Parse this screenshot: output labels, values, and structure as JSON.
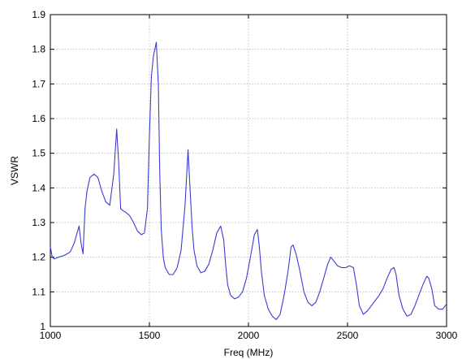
{
  "chart_data": {
    "type": "line",
    "title": "",
    "xlabel": "Freq (MHz)",
    "ylabel": "VSWR",
    "xlim": [
      1000,
      3000
    ],
    "ylim": [
      1.0,
      1.9
    ],
    "x_ticks": [
      1000,
      1500,
      2000,
      2500,
      3000
    ],
    "x_tick_labels": [
      "1000",
      "1500",
      "2000",
      "2500",
      "3000"
    ],
    "y_ticks": [
      1.0,
      1.1,
      1.2,
      1.3,
      1.4,
      1.5,
      1.6,
      1.7,
      1.8,
      1.9
    ],
    "y_tick_labels": [
      "1",
      "1.1",
      "1.2",
      "1.3",
      "1.4",
      "1.5",
      "1.6",
      "1.7",
      "1.8",
      "1.9"
    ],
    "grid": true,
    "line_color": "#3b3bd6",
    "series": [
      {
        "x": [
          1000,
          1010,
          1020,
          1040,
          1070,
          1100,
          1120,
          1130,
          1145,
          1155,
          1165,
          1175,
          1185,
          1200,
          1220,
          1240,
          1260,
          1280,
          1300,
          1320,
          1335,
          1345,
          1355,
          1365,
          1380,
          1400,
          1420,
          1440,
          1460,
          1475,
          1490,
          1500,
          1510,
          1520,
          1535,
          1545,
          1552,
          1560,
          1570,
          1580,
          1600,
          1620,
          1640,
          1660,
          1680,
          1695,
          1705,
          1715,
          1725,
          1740,
          1760,
          1780,
          1800,
          1820,
          1840,
          1860,
          1875,
          1885,
          1895,
          1910,
          1930,
          1950,
          1970,
          1990,
          2010,
          2030,
          2045,
          2055,
          2065,
          2080,
          2100,
          2120,
          2140,
          2160,
          2180,
          2200,
          2215,
          2225,
          2240,
          2260,
          2280,
          2300,
          2320,
          2340,
          2360,
          2380,
          2400,
          2415,
          2430,
          2450,
          2470,
          2490,
          2510,
          2530,
          2545,
          2560,
          2580,
          2600,
          2620,
          2640,
          2660,
          2680,
          2700,
          2720,
          2735,
          2745,
          2760,
          2780,
          2800,
          2820,
          2840,
          2860,
          2880,
          2900,
          2910,
          2925,
          2940,
          2960,
          2980,
          3000
        ],
        "y": [
          1.23,
          1.2,
          1.195,
          1.2,
          1.205,
          1.215,
          1.24,
          1.26,
          1.29,
          1.24,
          1.21,
          1.34,
          1.39,
          1.43,
          1.44,
          1.43,
          1.39,
          1.36,
          1.35,
          1.44,
          1.57,
          1.47,
          1.34,
          1.335,
          1.33,
          1.32,
          1.3,
          1.275,
          1.265,
          1.27,
          1.34,
          1.55,
          1.72,
          1.78,
          1.82,
          1.7,
          1.45,
          1.28,
          1.2,
          1.17,
          1.15,
          1.15,
          1.17,
          1.22,
          1.35,
          1.51,
          1.4,
          1.29,
          1.22,
          1.175,
          1.155,
          1.16,
          1.18,
          1.22,
          1.27,
          1.29,
          1.25,
          1.18,
          1.12,
          1.09,
          1.08,
          1.085,
          1.1,
          1.14,
          1.2,
          1.265,
          1.28,
          1.23,
          1.16,
          1.09,
          1.05,
          1.03,
          1.02,
          1.035,
          1.09,
          1.16,
          1.23,
          1.235,
          1.21,
          1.16,
          1.1,
          1.07,
          1.06,
          1.07,
          1.1,
          1.14,
          1.18,
          1.2,
          1.19,
          1.175,
          1.17,
          1.17,
          1.175,
          1.17,
          1.12,
          1.06,
          1.035,
          1.045,
          1.06,
          1.075,
          1.09,
          1.11,
          1.14,
          1.165,
          1.17,
          1.15,
          1.09,
          1.05,
          1.03,
          1.035,
          1.06,
          1.09,
          1.12,
          1.145,
          1.14,
          1.11,
          1.06,
          1.05,
          1.05,
          1.065
        ]
      }
    ]
  }
}
